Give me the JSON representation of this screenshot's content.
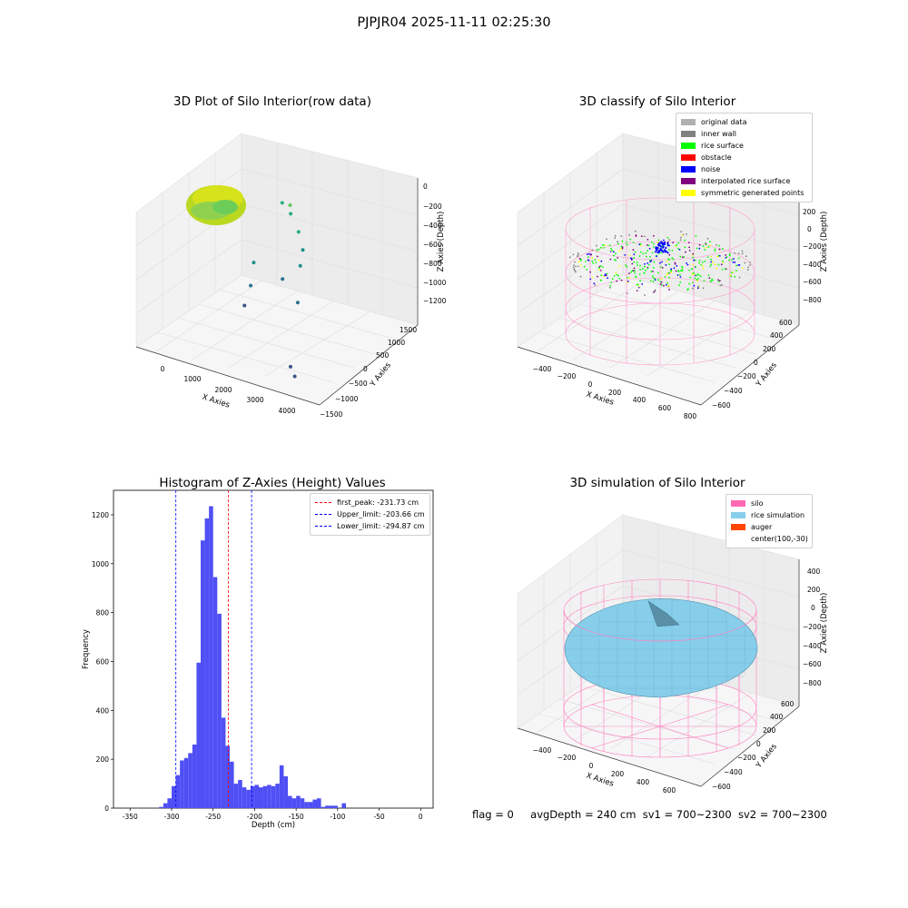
{
  "suptitle": "PJPJR04 2025-11-11 02:25:30",
  "chart_data": [
    {
      "type": "scatter",
      "title": "3D Plot of Silo Interior(row data)",
      "xlabel": "X Axies",
      "ylabel": "Y Axies",
      "zlabel": "Z Axies (Depth)",
      "x_ticks": [
        "0",
        "1000",
        "2000",
        "3000",
        "4000"
      ],
      "y_ticks": [
        "−1500",
        "−1000",
        "−500",
        "0",
        "500",
        "1000",
        "1500"
      ],
      "z_ticks": [
        "0",
        "−200",
        "−400",
        "−600",
        "−800",
        "−1000",
        "−1200"
      ],
      "colormap": "viridis",
      "points": [
        {
          "x": 1500,
          "y": 900,
          "z": -250
        },
        {
          "x": 1600,
          "y": 800,
          "z": -300
        },
        {
          "x": 1200,
          "y": 1000,
          "z": -280
        },
        {
          "x": 1900,
          "y": 700,
          "z": -420
        },
        {
          "x": 2100,
          "y": 600,
          "z": -550
        },
        {
          "x": 2200,
          "y": 400,
          "z": -650
        },
        {
          "x": 1100,
          "y": 200,
          "z": -700
        },
        {
          "x": 1100,
          "y": 100,
          "z": -900
        },
        {
          "x": 1100,
          "y": -100,
          "z": -1050
        },
        {
          "x": 1800,
          "y": 300,
          "z": -800
        },
        {
          "x": 2300,
          "y": 200,
          "z": -950
        },
        {
          "x": 3200,
          "y": -1100,
          "z": -1200
        },
        {
          "x": 3400,
          "y": -1200,
          "z": -1250
        }
      ]
    },
    {
      "type": "scatter",
      "title": "3D classify of Silo Interior",
      "xlabel": "X Axies",
      "ylabel": "Y Axies",
      "zlabel": "Z Axies (Depth)",
      "x_ticks": [
        "−400",
        "−200",
        "0",
        "200",
        "400",
        "600",
        "800"
      ],
      "y_ticks": [
        "−600",
        "−400",
        "−200",
        "0",
        "200",
        "400",
        "600"
      ],
      "z_ticks": [
        "200",
        "0",
        "−200",
        "−400",
        "−600",
        "−800"
      ],
      "legend": [
        {
          "label": "original data",
          "color": "#b0b0b0"
        },
        {
          "label": "inner wall",
          "color": "#808080"
        },
        {
          "label": "rice surface",
          "color": "#00ff00"
        },
        {
          "label": "obstacle",
          "color": "#ff0000"
        },
        {
          "label": "noise",
          "color": "#0000ff"
        },
        {
          "label": "interpolated rice surface",
          "color": "#800080"
        },
        {
          "label": "symmetric generated points",
          "color": "#ffff00"
        }
      ]
    },
    {
      "type": "bar",
      "title": "Histogram of Z-Axies (Height) Values",
      "xlabel": "Depth (cm)",
      "ylabel": "Frequency",
      "xlim": [
        -370,
        15
      ],
      "ylim": [
        0,
        1300
      ],
      "x_ticks": [
        -350,
        -300,
        -250,
        -200,
        -150,
        -100,
        -50,
        0
      ],
      "y_ticks": [
        0,
        200,
        400,
        600,
        800,
        1000,
        1200
      ],
      "bin_width": 5,
      "bin_starts": [
        -315,
        -310,
        -305,
        -300,
        -295,
        -290,
        -285,
        -280,
        -275,
        -270,
        -265,
        -260,
        -255,
        -250,
        -245,
        -240,
        -235,
        -230,
        -225,
        -220,
        -215,
        -210,
        -205,
        -200,
        -195,
        -190,
        -185,
        -180,
        -175,
        -170,
        -165,
        -160,
        -155,
        -150,
        -145,
        -140,
        -135,
        -130,
        -125,
        -120,
        -115,
        -110,
        -105,
        -100,
        -95,
        -90,
        -85,
        -80,
        -75,
        -70,
        -65,
        -60,
        -55,
        -50,
        -45,
        -40,
        -35,
        -30,
        -25,
        -20,
        -15,
        -10,
        -5,
        0
      ],
      "values": [
        5,
        20,
        40,
        90,
        135,
        195,
        205,
        225,
        260,
        595,
        1095,
        1185,
        1235,
        945,
        795,
        370,
        255,
        190,
        100,
        115,
        85,
        75,
        90,
        95,
        85,
        90,
        95,
        90,
        100,
        175,
        130,
        50,
        40,
        50,
        40,
        25,
        25,
        35,
        40,
        5,
        10,
        10,
        10,
        0,
        20,
        0,
        0,
        0,
        0,
        0,
        0,
        0,
        0,
        0,
        0,
        0,
        0,
        0,
        0,
        0,
        0,
        0,
        0,
        0
      ],
      "vlines": [
        {
          "label": "first_peak: -231.73 cm",
          "x": -231.73,
          "color": "#ff0000"
        },
        {
          "label": "Upper_limit: -203.66 cm",
          "x": -203.66,
          "color": "#0000ff"
        },
        {
          "label": "Lower_limit: -294.87 cm",
          "x": -294.87,
          "color": "#0000ff"
        }
      ],
      "bar_color": "#4f4ff5"
    },
    {
      "type": "surface",
      "title": "3D simulation of Silo Interior",
      "xlabel": "X Axies",
      "ylabel": "Y Axies",
      "zlabel": "Z Axies (Depth)",
      "x_ticks": [
        "−400",
        "−200",
        "0",
        "200",
        "400",
        "600"
      ],
      "y_ticks": [
        "−600",
        "−400",
        "−200",
        "0",
        "200",
        "400",
        "600"
      ],
      "z_ticks": [
        "400",
        "200",
        "0",
        "−200",
        "−400",
        "−600",
        "−800"
      ],
      "legend": [
        {
          "label": "silo",
          "color": "#ff69b4"
        },
        {
          "label": "rice simulation",
          "color": "#87ceeb"
        },
        {
          "label": "auger",
          "color": "#ff4500"
        },
        {
          "label": "center(100,-30)",
          "color": ""
        }
      ]
    }
  ],
  "status": {
    "flag": "flag = 0",
    "avg_depth": "avgDepth = 240 cm",
    "sv1": "sv1 = 700~2300",
    "sv2": "sv2 = 700~2300"
  }
}
